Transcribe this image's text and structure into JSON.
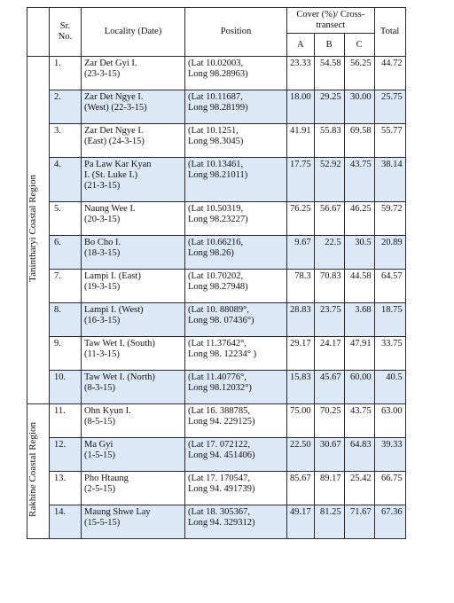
{
  "columns": {
    "sr_no": "Sr.\nNo.",
    "locality": "Locality (Date)",
    "position": "Position",
    "cover": "Cover (%)/ Cross-transect",
    "a": "A",
    "b": "B",
    "c": "C",
    "total": "Total"
  },
  "regions": [
    {
      "name": "Tanintharyi Coastal Region",
      "rows": 10
    },
    {
      "name": "Rakhine Coastal Region",
      "rows": 4
    }
  ],
  "rows": [
    {
      "no": "1.",
      "locality": "Zar Det Gyi I.\n(23-3-15)",
      "position": "(Lat 10.02003,\nLong 98.28963)",
      "a": "23.33",
      "b": "54.58",
      "c": "56.25",
      "total": "44.72"
    },
    {
      "no": "2.",
      "locality": "Zar Det Ngye I.\n(West) (22-3-15)",
      "position": "(Lat 10.11687,\nLong 98.28199)",
      "a": "18.00",
      "b": "29.25",
      "c": "30.00",
      "total": "25.75"
    },
    {
      "no": "3.",
      "locality": "Zar Det Ngye I.\n(East) (24-3-15)",
      "position": "(Lat 10.1251,\nLong 98.3045)",
      "a": "41.91",
      "b": "55.83",
      "c": "69.58",
      "total": "55.77"
    },
    {
      "no": "4.",
      "locality": "Pa Law Kar Kyan\nI. (St. Luke I.)\n(21-3-15)",
      "position": "(Lat 10.13461,\nLong 98.21011)",
      "a": "17.75",
      "b": "52.92",
      "c": "43.75",
      "total": "38.14"
    },
    {
      "no": "5.",
      "locality": "Naung Wee I.\n(20-3-15)",
      "position": "(Lat 10.50319,\nLong 98.23227)",
      "a": "76.25",
      "b": "56.67",
      "c": "46.25",
      "total": "59.72"
    },
    {
      "no": "6.",
      "locality": "Bo Cho I.\n(18-3-15)",
      "position": "(Lat 10.66216,\nLong 98.26)",
      "a": "9.67",
      "b": "22.5",
      "c": "30.5",
      "total": "20.89"
    },
    {
      "no": "7.",
      "locality": "Lampi I. (East)\n(19-3-15)",
      "position": "(Lat 10.70202,\nLong 98.27948)",
      "a": "78.3",
      "b": "70.83",
      "c": "44.58",
      "total": "64.57"
    },
    {
      "no": "8.",
      "locality": "Lampi I. (West)\n(16-3-15)",
      "position": "(Lat 10. 88089°,\nLong 98. 07436°)",
      "a": "28.83",
      "b": "23.75",
      "c": "3.68",
      "total": "18.75"
    },
    {
      "no": "9.",
      "locality": "Taw Wet I. (South)\n(11-3-15)",
      "position": "(Lat 11.37642°,\nLong 98. 12234° )",
      "a": "29.17",
      "b": "24.17",
      "c": "47.91",
      "total": "33.75"
    },
    {
      "no": "10.",
      "locality": "Taw Wet I. (North)\n(8-3-15)",
      "position": "(Lat 11.40776°,\nLong 98.12032°)",
      "a": "15.83",
      "b": "45.67",
      "c": "60.00",
      "total": "40.5"
    },
    {
      "no": "11.",
      "locality": "Ohn Kyun I.\n(8-5-15)",
      "position": "(Lat 16. 388785,\nLong 94. 229125)",
      "a": "75.00",
      "b": "70.25",
      "c": "43.75",
      "total": "63.00"
    },
    {
      "no": "12.",
      "locality": "Ma Gyi\n(1-5-15)",
      "position": "(Lat 17. 072122,\nLong 94. 451406)",
      "a": "22.50",
      "b": "30.67",
      "c": "64.83",
      "total": "39.33"
    },
    {
      "no": "13.",
      "locality": "Pho Htaung\n(2-5-15)",
      "position": "(Lat 17. 170547,\nLong 94. 491739)",
      "a": "85.67",
      "b": "89.17",
      "c": "25.42",
      "total": "66.75"
    },
    {
      "no": "14.",
      "locality": "Maung Shwe Lay\n(15-5-15)",
      "position": "(Lat 18. 305367,\nLong 94. 329312)",
      "a": "49.17",
      "b": "81.25",
      "c": "71.67",
      "total": "67.36"
    }
  ]
}
